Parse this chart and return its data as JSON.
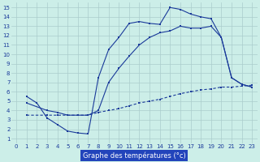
{
  "title": "Graphe des températures (°c)",
  "bg_color": "#cceee8",
  "grid_color": "#aacccc",
  "line_color": "#1a3a9a",
  "xlim": [
    -0.5,
    23.5
  ],
  "ylim": [
    0.5,
    15.5
  ],
  "xticks": [
    0,
    1,
    2,
    3,
    4,
    5,
    6,
    7,
    8,
    9,
    10,
    11,
    12,
    13,
    14,
    15,
    16,
    17,
    18,
    19,
    20,
    21,
    22,
    23
  ],
  "yticks": [
    1,
    2,
    3,
    4,
    5,
    6,
    7,
    8,
    9,
    10,
    11,
    12,
    13,
    14,
    15
  ],
  "line1": {
    "x": [
      1,
      2,
      3,
      4,
      5,
      6,
      7,
      8,
      9,
      10,
      11,
      12,
      13,
      14,
      15,
      16,
      17,
      18,
      19,
      20,
      21,
      22,
      23
    ],
    "y": [
      5.5,
      4.8,
      3.2,
      2.5,
      1.8,
      1.6,
      1.5,
      7.5,
      10.5,
      11.8,
      13.3,
      13.5,
      13.3,
      13.2,
      15.0,
      14.8,
      14.3,
      14.0,
      13.8,
      11.8,
      7.5,
      6.8,
      6.5
    ]
  },
  "line2": {
    "x": [
      1,
      3,
      4,
      5,
      6,
      7,
      8,
      9,
      10,
      11,
      12,
      13,
      14,
      15,
      16,
      17,
      18,
      19,
      20,
      21,
      22,
      23
    ],
    "y": [
      4.8,
      4.0,
      3.8,
      3.5,
      3.5,
      3.5,
      4.0,
      7.0,
      8.5,
      9.8,
      11.0,
      11.8,
      12.3,
      12.5,
      13.0,
      12.8,
      12.8,
      13.0,
      11.8,
      7.5,
      6.8,
      6.5
    ]
  },
  "line3": {
    "x": [
      1,
      3,
      4,
      5,
      6,
      7,
      8,
      9,
      10,
      11,
      12,
      13,
      14,
      15,
      16,
      17,
      18,
      19,
      20,
      21,
      22,
      23
    ],
    "y": [
      3.5,
      3.5,
      3.5,
      3.5,
      3.5,
      3.5,
      3.8,
      4.0,
      4.2,
      4.5,
      4.8,
      5.0,
      5.2,
      5.5,
      5.8,
      6.0,
      6.2,
      6.3,
      6.5,
      6.5,
      6.6,
      6.7
    ]
  },
  "xlabel_facecolor": "#2244bb",
  "xlabel_textcolor": "#ffffff",
  "xlabel_fontsize": 6.0,
  "tick_fontsize": 5.0,
  "marker_size": 2.0,
  "lw": 0.8
}
